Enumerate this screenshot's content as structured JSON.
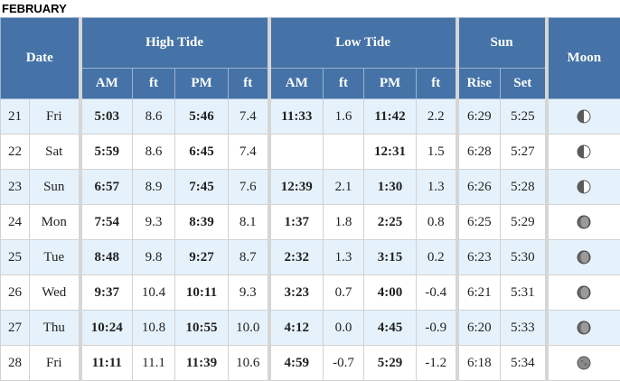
{
  "month": "FEBRUARY",
  "headers": {
    "date": "Date",
    "high_tide": "High Tide",
    "low_tide": "Low Tide",
    "sun": "Sun",
    "moon": "Moon",
    "am": "AM",
    "pm": "PM",
    "ft": "ft",
    "rise": "Rise",
    "set": "Set"
  },
  "rows": [
    {
      "day": "21",
      "dow": "Fri",
      "high_am": "5:03",
      "high_am_ft": "8.6",
      "high_pm": "5:46",
      "high_pm_ft": "7.4",
      "low_am": "11:33",
      "low_am_ft": "1.6",
      "low_pm": "11:42",
      "low_pm_ft": "2.2",
      "rise": "6:29",
      "set": "5:25",
      "moon_phase": "first-quarter"
    },
    {
      "day": "22",
      "dow": "Sat",
      "high_am": "5:59",
      "high_am_ft": "8.6",
      "high_pm": "6:45",
      "high_pm_ft": "7.4",
      "low_am": "",
      "low_am_ft": "",
      "low_pm": "12:31",
      "low_pm_ft": "1.5",
      "rise": "6:28",
      "set": "5:27",
      "moon_phase": "first-quarter"
    },
    {
      "day": "23",
      "dow": "Sun",
      "high_am": "6:57",
      "high_am_ft": "8.9",
      "high_pm": "7:45",
      "high_pm_ft": "7.6",
      "low_am": "12:39",
      "low_am_ft": "2.1",
      "low_pm": "1:30",
      "low_pm_ft": "1.3",
      "rise": "6:26",
      "set": "5:28",
      "moon_phase": "first-quarter"
    },
    {
      "day": "24",
      "dow": "Mon",
      "high_am": "7:54",
      "high_am_ft": "9.3",
      "high_pm": "8:39",
      "high_pm_ft": "8.1",
      "low_am": "1:37",
      "low_am_ft": "1.8",
      "low_pm": "2:25",
      "low_pm_ft": "0.8",
      "rise": "6:25",
      "set": "5:29",
      "moon_phase": "waxing-gibbous"
    },
    {
      "day": "25",
      "dow": "Tue",
      "high_am": "8:48",
      "high_am_ft": "9.8",
      "high_pm": "9:27",
      "high_pm_ft": "8.7",
      "low_am": "2:32",
      "low_am_ft": "1.3",
      "low_pm": "3:15",
      "low_pm_ft": "0.2",
      "rise": "6:23",
      "set": "5:30",
      "moon_phase": "waxing-gibbous"
    },
    {
      "day": "26",
      "dow": "Wed",
      "high_am": "9:37",
      "high_am_ft": "10.4",
      "high_pm": "10:11",
      "high_pm_ft": "9.3",
      "low_am": "3:23",
      "low_am_ft": "0.7",
      "low_pm": "4:00",
      "low_pm_ft": "-0.4",
      "rise": "6:21",
      "set": "5:31",
      "moon_phase": "waxing-gibbous"
    },
    {
      "day": "27",
      "dow": "Thu",
      "high_am": "10:24",
      "high_am_ft": "10.8",
      "high_pm": "10:55",
      "high_pm_ft": "10.0",
      "low_am": "4:12",
      "low_am_ft": "0.0",
      "low_pm": "4:45",
      "low_pm_ft": "-0.9",
      "rise": "6:20",
      "set": "5:33",
      "moon_phase": "waxing-gibbous"
    },
    {
      "day": "28",
      "dow": "Fri",
      "high_am": "11:11",
      "high_am_ft": "11.1",
      "high_pm": "11:39",
      "high_pm_ft": "10.6",
      "low_am": "4:59",
      "low_am_ft": "-0.7",
      "low_pm": "5:29",
      "low_pm_ft": "-1.2",
      "rise": "6:18",
      "set": "5:34",
      "moon_phase": "full"
    }
  ]
}
